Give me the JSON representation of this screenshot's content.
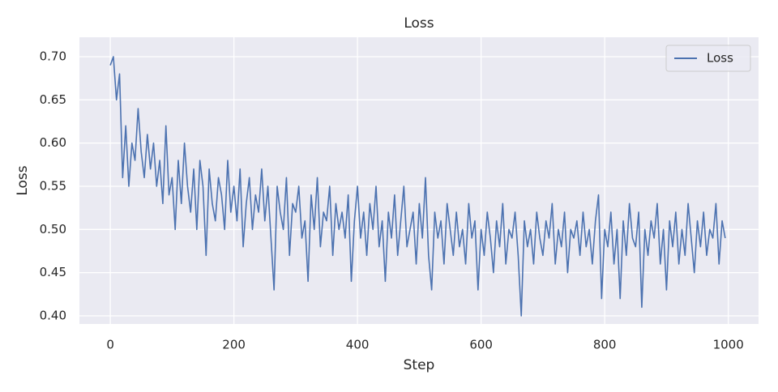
{
  "chart_data": {
    "type": "line",
    "title": "Loss",
    "xlabel": "Step",
    "ylabel": "Loss",
    "x": [
      0,
      5,
      10,
      15,
      20,
      25,
      30,
      35,
      40,
      45,
      50,
      55,
      60,
      65,
      70,
      75,
      80,
      85,
      90,
      95,
      100,
      105,
      110,
      115,
      120,
      125,
      130,
      135,
      140,
      145,
      150,
      155,
      160,
      165,
      170,
      175,
      180,
      185,
      190,
      195,
      200,
      205,
      210,
      215,
      220,
      225,
      230,
      235,
      240,
      245,
      250,
      255,
      260,
      265,
      270,
      275,
      280,
      285,
      290,
      295,
      300,
      305,
      310,
      315,
      320,
      325,
      330,
      335,
      340,
      345,
      350,
      355,
      360,
      365,
      370,
      375,
      380,
      385,
      390,
      395,
      400,
      405,
      410,
      415,
      420,
      425,
      430,
      435,
      440,
      445,
      450,
      455,
      460,
      465,
      470,
      475,
      480,
      485,
      490,
      495,
      500,
      505,
      510,
      515,
      520,
      525,
      530,
      535,
      540,
      545,
      550,
      555,
      560,
      565,
      570,
      575,
      580,
      585,
      590,
      595,
      600,
      605,
      610,
      615,
      620,
      625,
      630,
      635,
      640,
      645,
      650,
      655,
      660,
      665,
      670,
      675,
      680,
      685,
      690,
      695,
      700,
      705,
      710,
      715,
      720,
      725,
      730,
      735,
      740,
      745,
      750,
      755,
      760,
      765,
      770,
      775,
      780,
      785,
      790,
      795,
      800,
      805,
      810,
      815,
      820,
      825,
      830,
      835,
      840,
      845,
      850,
      855,
      860,
      865,
      870,
      875,
      880,
      885,
      890,
      895,
      900,
      905,
      910,
      915,
      920,
      925,
      930,
      935,
      940,
      945,
      950,
      955,
      960,
      965,
      970,
      975,
      980,
      985,
      990,
      995
    ],
    "series": [
      {
        "name": "Loss",
        "color": "#4c72b0",
        "values": [
          0.69,
          0.7,
          0.65,
          0.68,
          0.56,
          0.62,
          0.55,
          0.6,
          0.58,
          0.64,
          0.59,
          0.56,
          0.61,
          0.57,
          0.6,
          0.55,
          0.58,
          0.53,
          0.62,
          0.54,
          0.56,
          0.5,
          0.58,
          0.53,
          0.6,
          0.55,
          0.52,
          0.57,
          0.5,
          0.58,
          0.55,
          0.47,
          0.57,
          0.53,
          0.51,
          0.56,
          0.54,
          0.5,
          0.58,
          0.52,
          0.55,
          0.51,
          0.57,
          0.48,
          0.53,
          0.56,
          0.5,
          0.54,
          0.52,
          0.57,
          0.51,
          0.55,
          0.49,
          0.43,
          0.55,
          0.52,
          0.5,
          0.56,
          0.47,
          0.53,
          0.52,
          0.55,
          0.49,
          0.51,
          0.44,
          0.54,
          0.5,
          0.56,
          0.48,
          0.52,
          0.51,
          0.55,
          0.47,
          0.53,
          0.5,
          0.52,
          0.49,
          0.54,
          0.44,
          0.51,
          0.55,
          0.49,
          0.52,
          0.47,
          0.53,
          0.5,
          0.55,
          0.48,
          0.51,
          0.44,
          0.52,
          0.49,
          0.54,
          0.47,
          0.51,
          0.55,
          0.48,
          0.5,
          0.52,
          0.46,
          0.53,
          0.49,
          0.56,
          0.47,
          0.43,
          0.52,
          0.49,
          0.51,
          0.46,
          0.53,
          0.5,
          0.47,
          0.52,
          0.48,
          0.5,
          0.46,
          0.53,
          0.49,
          0.51,
          0.43,
          0.5,
          0.47,
          0.52,
          0.49,
          0.45,
          0.51,
          0.48,
          0.53,
          0.46,
          0.5,
          0.49,
          0.52,
          0.47,
          0.4,
          0.51,
          0.48,
          0.5,
          0.46,
          0.52,
          0.49,
          0.47,
          0.51,
          0.49,
          0.53,
          0.46,
          0.5,
          0.48,
          0.52,
          0.45,
          0.5,
          0.49,
          0.51,
          0.47,
          0.52,
          0.48,
          0.5,
          0.46,
          0.51,
          0.54,
          0.42,
          0.5,
          0.48,
          0.52,
          0.46,
          0.5,
          0.42,
          0.51,
          0.47,
          0.53,
          0.49,
          0.48,
          0.52,
          0.41,
          0.5,
          0.47,
          0.51,
          0.49,
          0.53,
          0.46,
          0.5,
          0.43,
          0.51,
          0.48,
          0.52,
          0.46,
          0.5,
          0.47,
          0.53,
          0.49,
          0.45,
          0.51,
          0.48,
          0.52,
          0.47,
          0.5,
          0.49,
          0.53,
          0.46,
          0.51,
          0.49
        ]
      }
    ],
    "xlim": [
      -49.95,
      1048.95
    ],
    "ylim": [
      0.3906,
      0.7225
    ],
    "xticks": [
      0,
      200,
      400,
      600,
      800,
      1000
    ],
    "yticks": [
      {
        "value": 0.4,
        "label": "0.40"
      },
      0.45,
      {
        "value": 0.5,
        "label": "0.50"
      },
      0.55,
      {
        "value": 0.6,
        "label": "0.60"
      },
      0.65,
      {
        "value": 0.7,
        "label": "0.70"
      }
    ],
    "grid": true,
    "legend": "upper right"
  }
}
